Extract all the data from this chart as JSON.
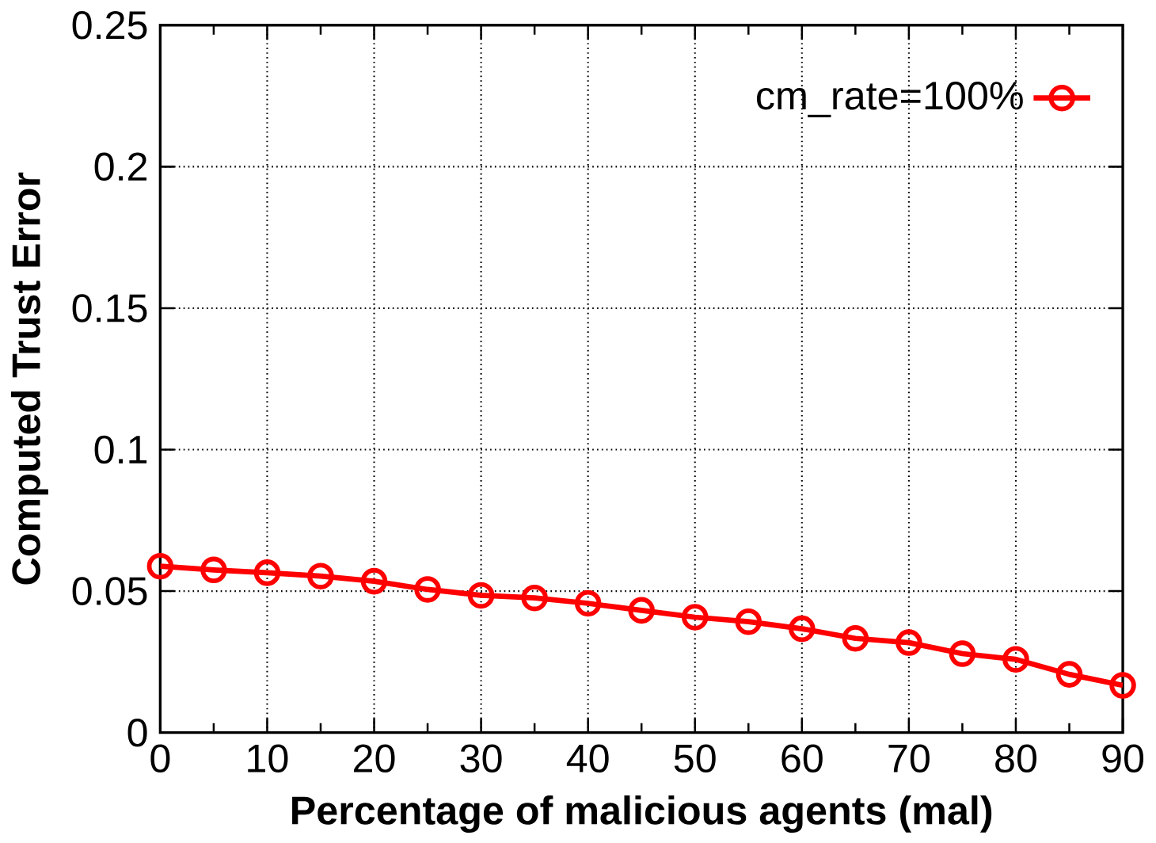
{
  "chart_data": {
    "type": "line",
    "xlabel": "Percentage of malicious agents (mal)",
    "ylabel": "Computed Trust Error",
    "x": [
      0,
      5,
      10,
      15,
      20,
      25,
      30,
      35,
      40,
      45,
      50,
      55,
      60,
      65,
      70,
      75,
      80,
      85,
      90
    ],
    "series": [
      {
        "name": "cm_rate=100%",
        "color": "#ff0000",
        "values": [
          0.0588,
          0.0575,
          0.0565,
          0.0553,
          0.0535,
          0.0506,
          0.0485,
          0.0476,
          0.0457,
          0.0432,
          0.0408,
          0.0392,
          0.0367,
          0.0333,
          0.0318,
          0.0279,
          0.0259,
          0.0206,
          0.0167
        ]
      }
    ],
    "xlim": [
      0,
      90
    ],
    "ylim": [
      0,
      0.25
    ],
    "xticks": [
      0,
      10,
      20,
      30,
      40,
      50,
      60,
      70,
      80,
      90
    ],
    "yticks": [
      0,
      0.05,
      0.1,
      0.15,
      0.2,
      0.25
    ],
    "grid": true,
    "legend": "top right",
    "marker": "circle",
    "line_style": "solid"
  }
}
